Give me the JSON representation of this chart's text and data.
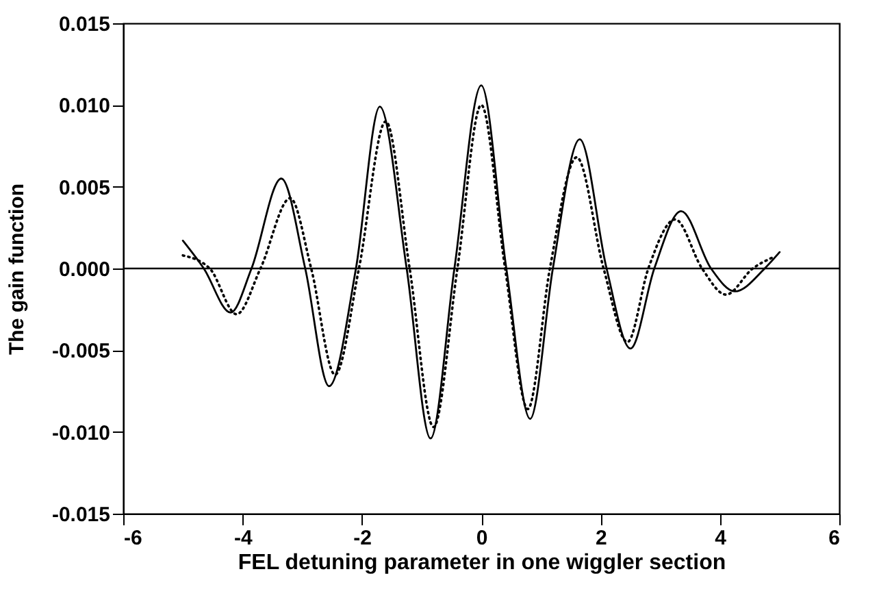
{
  "chart_data": {
    "type": "line",
    "xlabel": "FEL detuning parameter in one wiggler section",
    "ylabel": "The gain function",
    "xlim": [
      -6,
      6
    ],
    "xticks": [
      -6,
      -4,
      -2,
      0,
      2,
      4,
      6
    ],
    "ylim": [
      -0.015,
      0.015
    ],
    "yticks": [
      {
        "value": -0.015,
        "label": "-0.015"
      },
      {
        "value": -0.01,
        "label": "-0.010"
      },
      {
        "value": -0.005,
        "label": "-0.005"
      },
      {
        "value": 0,
        "label": "0.000"
      },
      {
        "value": 0.005,
        "label": "0.005"
      },
      {
        "value": 0.01,
        "label": "0.010"
      },
      {
        "value": 0.015,
        "label": "0.015"
      }
    ],
    "grid": false,
    "marker": "none",
    "ref_lines": [
      {
        "axis": "y",
        "value": 0,
        "color": "#000000"
      }
    ],
    "series": [
      {
        "color": "#000000",
        "line_style": "solid",
        "x": [
          -5,
          -4.65,
          -4.2,
          -3.85,
          -3.35,
          -2.95,
          -2.55,
          -2.1,
          -1.7,
          -1.25,
          -0.85,
          -0.45,
          0,
          0.42,
          0.82,
          1.2,
          1.65,
          2.1,
          2.5,
          2.9,
          3.35,
          3.85,
          4.25,
          4.75,
          5
        ],
        "values": [
          0.0017,
          0,
          -0.0027,
          0,
          0.0055,
          0,
          -0.0072,
          0,
          0.0099,
          0,
          -0.0104,
          0,
          0.0112,
          0,
          -0.0092,
          0,
          0.0079,
          0,
          -0.0049,
          0,
          0.0035,
          0,
          -0.0014,
          0,
          0.001
        ]
      },
      {
        "color": "#000000",
        "line_style": "dotted",
        "x": [
          -5,
          -4.55,
          -4.1,
          -3.7,
          -3.2,
          -2.85,
          -2.45,
          -2.05,
          -1.6,
          -1.2,
          -0.8,
          -0.4,
          0,
          0.4,
          0.78,
          1.15,
          1.6,
          2.05,
          2.45,
          2.8,
          3.25,
          3.7,
          4.1,
          4.55,
          4.9
        ],
        "values": [
          0.0008,
          0,
          -0.0028,
          0,
          0.0043,
          0,
          -0.0065,
          0,
          0.009,
          0,
          -0.0097,
          0,
          0.01,
          0,
          -0.0086,
          0,
          0.0068,
          0,
          -0.0045,
          0,
          0.003,
          0,
          -0.0016,
          0,
          0.0007
        ]
      }
    ]
  }
}
